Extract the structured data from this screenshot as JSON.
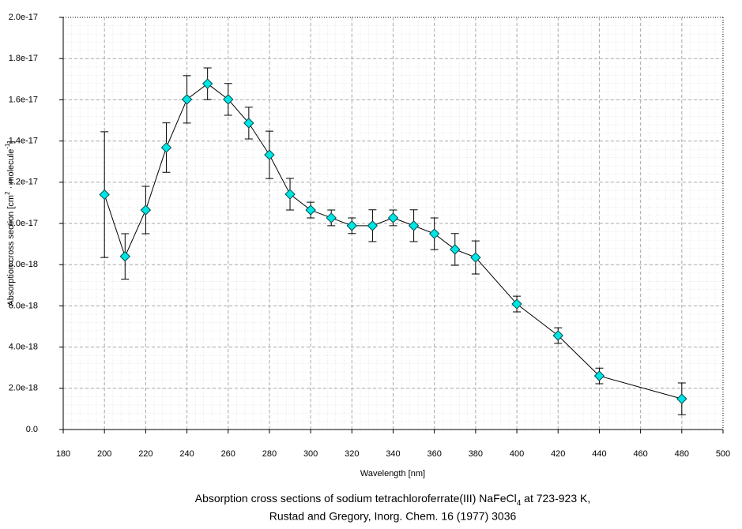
{
  "chart_data": {
    "type": "line",
    "x_label": "Wavelength [nm]",
    "y_label": [
      "Absorption cross section [cm",
      "2",
      " · molecule",
      "-1",
      "]"
    ],
    "caption": [
      [
        "Absorption cross sections of sodium tetrachloroferrate(III) NaFeCl",
        "4",
        " at 723-923 K,"
      ],
      [
        "Rustad and Gregory, Inorg. Chem. 16 (1977) 3036"
      ]
    ],
    "x": [
      200,
      210,
      220,
      230,
      240,
      250,
      260,
      270,
      280,
      290,
      300,
      310,
      320,
      330,
      340,
      350,
      360,
      370,
      380,
      400,
      420,
      440,
      480
    ],
    "series": [
      {
        "color": "#00e5e5",
        "line_color": "#000000",
        "values": [
          1.14e-17,
          8.4e-18,
          1.065e-17,
          1.368e-17,
          1.602e-17,
          1.678e-17,
          1.602e-17,
          1.487e-17,
          1.333e-17,
          1.142e-17,
          1.065e-17,
          1.027e-17,
          9.89e-18,
          9.89e-18,
          1.027e-17,
          9.89e-18,
          9.5e-18,
          8.74e-18,
          8.35e-18,
          6.09e-18,
          4.56e-18,
          2.6e-18,
          1.49e-18
        ],
        "errors": [
          3.05e-18,
          1.1e-18,
          1.15e-18,
          1.2e-18,
          1.15e-18,
          7.7e-19,
          7.7e-19,
          7.7e-19,
          1.15e-18,
          7.7e-19,
          3.8e-19,
          3.8e-19,
          3.8e-19,
          7.7e-19,
          3.8e-19,
          7.7e-19,
          7.7e-19,
          7.7e-19,
          8e-19,
          3.8e-19,
          3.8e-19,
          3.8e-19,
          7.7e-19
        ]
      }
    ],
    "xlim": [
      180,
      500
    ],
    "xticks": [
      180,
      200,
      220,
      240,
      260,
      280,
      300,
      320,
      340,
      360,
      380,
      400,
      420,
      440,
      460,
      480,
      500
    ],
    "ylim": [
      0,
      2e-17
    ],
    "yticks": [
      {
        "value": 0,
        "label": "0.0"
      },
      {
        "value": 2e-18,
        "label": "2.0e-18"
      },
      {
        "value": 4e-18,
        "label": "4.0e-18"
      },
      {
        "value": 6e-18,
        "label": "6.0e-18"
      },
      {
        "value": 8e-18,
        "label": "8.0e-18"
      },
      {
        "value": 1e-17,
        "label": "1.0e-17"
      },
      {
        "value": 1.2e-17,
        "label": "1.2e-17"
      },
      {
        "value": 1.4e-17,
        "label": "1.4e-17"
      },
      {
        "value": 1.6e-17,
        "label": "1.6e-17"
      },
      {
        "value": 1.8e-17,
        "label": "1.8e-17"
      },
      {
        "value": 2e-17,
        "label": "2.0e-17"
      }
    ],
    "grid": true
  }
}
